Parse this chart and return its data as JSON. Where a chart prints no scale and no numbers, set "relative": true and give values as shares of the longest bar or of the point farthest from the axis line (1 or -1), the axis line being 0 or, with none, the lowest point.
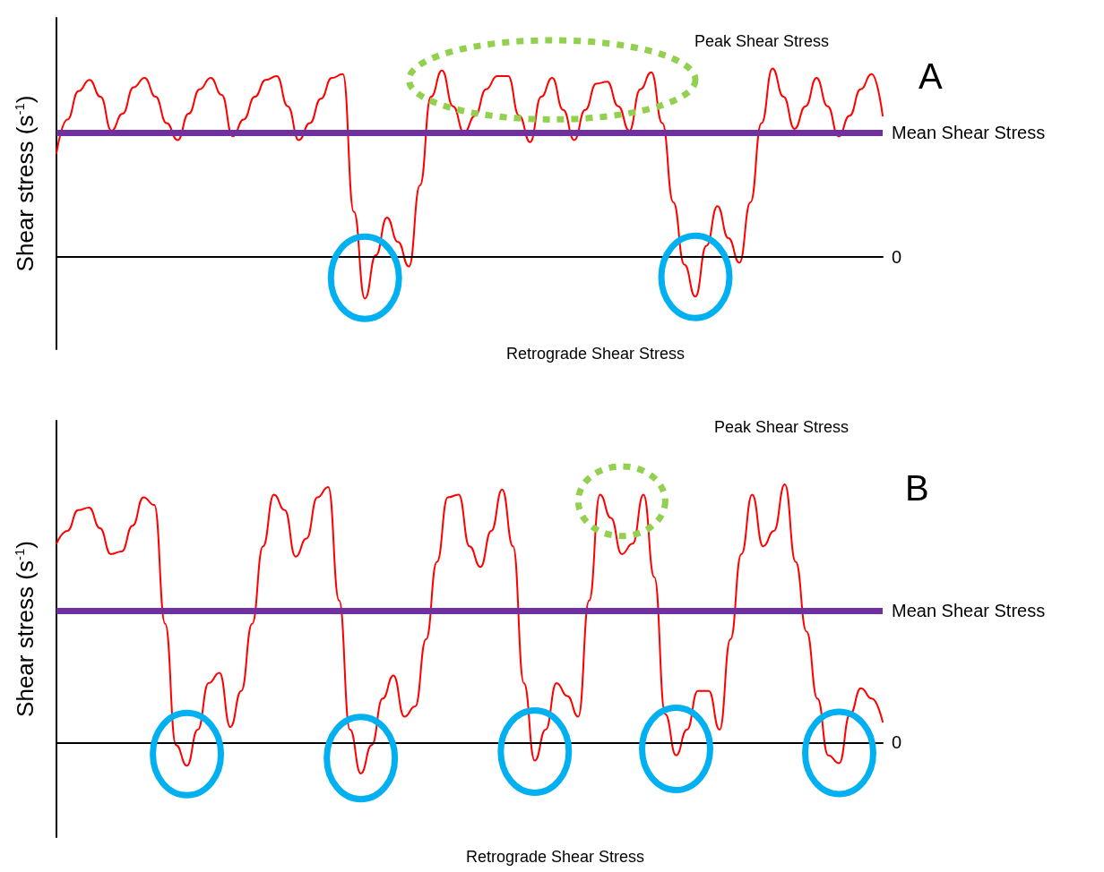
{
  "chart_data": [
    {
      "type": "line",
      "relative": true,
      "ylabel": "Shear stress (s$^{-1}$)",
      "marker": "none",
      "line_style": "solid",
      "categories": [
        null,
        null,
        null,
        null,
        null,
        null,
        null,
        null,
        null,
        null,
        null,
        null,
        null,
        null,
        null,
        null,
        null,
        null,
        null,
        null,
        null,
        null,
        null,
        null,
        null,
        null,
        null,
        null,
        null,
        null,
        null,
        null,
        null,
        null,
        null,
        null,
        null,
        null,
        null,
        null,
        null,
        null,
        null,
        null,
        null,
        null,
        null,
        null,
        null,
        null,
        null,
        null,
        null,
        null,
        null,
        null,
        null,
        null,
        null,
        null,
        null,
        null,
        null,
        null,
        null,
        null,
        null,
        null,
        null,
        null,
        null,
        null,
        null,
        null,
        null,
        null
      ],
      "series": [
        {
          "color": "#ff0000",
          "values": [
            0.55,
            0.73,
            0.88,
            0.94,
            0.85,
            0.67,
            0.76,
            0.9,
            0.95,
            0.85,
            0.71,
            0.62,
            0.76,
            0.89,
            0.95,
            0.86,
            0.64,
            0.73,
            0.85,
            0.94,
            0.96,
            0.8,
            0.62,
            0.71,
            0.84,
            0.95,
            0.97,
            0.24,
            -0.22,
            0.01,
            0.21,
            0.08,
            -0.05,
            0.38,
            0.85,
            0.99,
            0.8,
            0.66,
            0.75,
            0.89,
            0.96,
            0.96,
            0.75,
            0.61,
            0.85,
            0.95,
            0.78,
            0.62,
            0.78,
            0.92,
            0.93,
            0.8,
            0.67,
            0.89,
            0.98,
            0.71,
            0.29,
            -0.04,
            -0.21,
            0.06,
            0.27,
            0.1,
            -0.03,
            0.29,
            0.71,
            1.0,
            0.85,
            0.68,
            0.8,
            0.95,
            0.8,
            0.64,
            0.75,
            0.89,
            0.97,
            0.75
          ]
        }
      ],
      "ref_lines": [
        {
          "axis": "y",
          "value": 0.66,
          "label": "Mean Shear Stress",
          "color": "#7030a0"
        },
        {
          "axis": "y",
          "value": 0,
          "label": "0",
          "color": "#000000"
        }
      ],
      "annotations": [
        "Peak Shear Stress",
        "A",
        "Retrograde Shear Stress"
      ]
    },
    {
      "type": "line",
      "relative": true,
      "ylabel": "Shear stress (s$^{-1}$)",
      "marker": "none",
      "line_style": "solid",
      "categories": [
        null,
        null,
        null,
        null,
        null,
        null,
        null,
        null,
        null,
        null,
        null,
        null,
        null,
        null,
        null,
        null,
        null,
        null,
        null,
        null,
        null,
        null,
        null,
        null,
        null,
        null,
        null,
        null,
        null,
        null,
        null,
        null,
        null,
        null,
        null,
        null,
        null,
        null,
        null,
        null,
        null,
        null,
        null,
        null,
        null,
        null,
        null,
        null,
        null,
        null,
        null,
        null,
        null,
        null,
        null,
        null,
        null,
        null,
        null,
        null,
        null,
        null,
        null,
        null,
        null,
        null,
        null,
        null,
        null,
        null,
        null,
        null,
        null,
        null,
        null,
        null,
        null
      ],
      "series": [
        {
          "color": "#ff0000",
          "values": [
            0.77,
            0.82,
            0.9,
            0.91,
            0.83,
            0.73,
            0.74,
            0.84,
            0.95,
            0.92,
            0.46,
            -0.01,
            -0.09,
            0.05,
            0.23,
            0.27,
            0.06,
            0.2,
            0.46,
            0.76,
            0.96,
            0.9,
            0.72,
            0.79,
            0.95,
            0.99,
            0.55,
            0.05,
            -0.12,
            -0.01,
            0.17,
            0.26,
            0.1,
            0.14,
            0.4,
            0.7,
            0.95,
            0.96,
            0.76,
            0.68,
            0.82,
            0.98,
            0.76,
            0.23,
            -0.07,
            0.05,
            0.23,
            0.18,
            0.1,
            0.55,
            0.96,
            0.87,
            0.73,
            0.77,
            0.96,
            0.64,
            0.11,
            -0.05,
            0.05,
            0.2,
            0.2,
            0.05,
            0.4,
            0.73,
            0.96,
            0.76,
            0.82,
            1.0,
            0.7,
            0.43,
            0.17,
            -0.05,
            -0.08,
            0.11,
            0.21,
            0.17,
            0.08
          ]
        }
      ],
      "ref_lines": [
        {
          "axis": "y",
          "value": 0.51,
          "label": "Mean Shear Stress",
          "color": "#7030a0"
        },
        {
          "axis": "y",
          "value": 0,
          "label": "0",
          "color": "#000000"
        }
      ],
      "annotations": [
        "Peak Shear Stress",
        "B",
        "Retrograde Shear Stress"
      ]
    }
  ]
}
